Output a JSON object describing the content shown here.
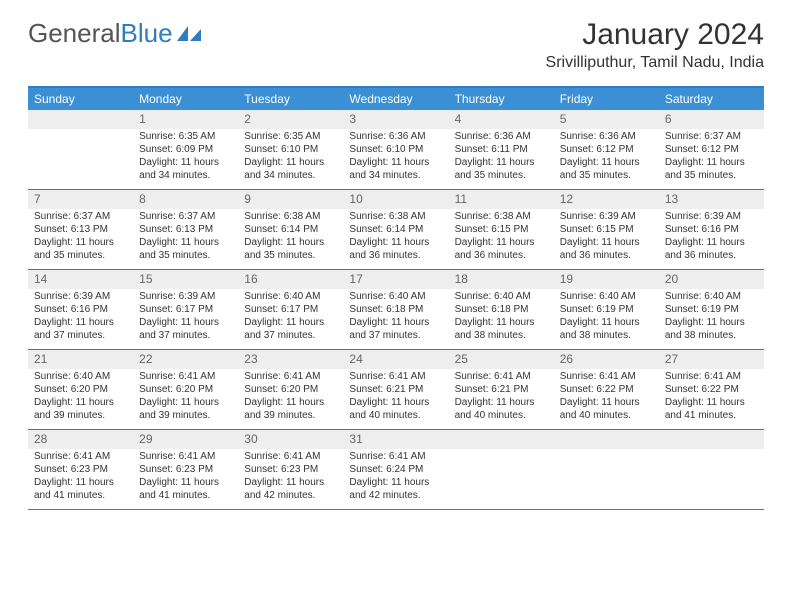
{
  "brand": {
    "part1": "General",
    "part2": "Blue"
  },
  "header": {
    "title": "January 2024",
    "location": "Srivilliputhur, Tamil Nadu, India"
  },
  "colors": {
    "header_blue": "#3b8fd4",
    "border_blue": "#2f7cc0",
    "daynum_bg": "#eeeeee",
    "text": "#333333",
    "text_muted": "#666666",
    "background": "#ffffff"
  },
  "typography": {
    "title_fontsize": 30,
    "location_fontsize": 16,
    "dayheader_fontsize": 12,
    "daynum_fontsize": 12,
    "cell_fontsize": 10
  },
  "day_names": [
    "Sunday",
    "Monday",
    "Tuesday",
    "Wednesday",
    "Thursday",
    "Friday",
    "Saturday"
  ],
  "weeks": [
    [
      {
        "day": ""
      },
      {
        "day": "1",
        "sunrise": "Sunrise: 6:35 AM",
        "sunset": "Sunset: 6:09 PM",
        "dl1": "Daylight: 11 hours",
        "dl2": "and 34 minutes."
      },
      {
        "day": "2",
        "sunrise": "Sunrise: 6:35 AM",
        "sunset": "Sunset: 6:10 PM",
        "dl1": "Daylight: 11 hours",
        "dl2": "and 34 minutes."
      },
      {
        "day": "3",
        "sunrise": "Sunrise: 6:36 AM",
        "sunset": "Sunset: 6:10 PM",
        "dl1": "Daylight: 11 hours",
        "dl2": "and 34 minutes."
      },
      {
        "day": "4",
        "sunrise": "Sunrise: 6:36 AM",
        "sunset": "Sunset: 6:11 PM",
        "dl1": "Daylight: 11 hours",
        "dl2": "and 35 minutes."
      },
      {
        "day": "5",
        "sunrise": "Sunrise: 6:36 AM",
        "sunset": "Sunset: 6:12 PM",
        "dl1": "Daylight: 11 hours",
        "dl2": "and 35 minutes."
      },
      {
        "day": "6",
        "sunrise": "Sunrise: 6:37 AM",
        "sunset": "Sunset: 6:12 PM",
        "dl1": "Daylight: 11 hours",
        "dl2": "and 35 minutes."
      }
    ],
    [
      {
        "day": "7",
        "sunrise": "Sunrise: 6:37 AM",
        "sunset": "Sunset: 6:13 PM",
        "dl1": "Daylight: 11 hours",
        "dl2": "and 35 minutes."
      },
      {
        "day": "8",
        "sunrise": "Sunrise: 6:37 AM",
        "sunset": "Sunset: 6:13 PM",
        "dl1": "Daylight: 11 hours",
        "dl2": "and 35 minutes."
      },
      {
        "day": "9",
        "sunrise": "Sunrise: 6:38 AM",
        "sunset": "Sunset: 6:14 PM",
        "dl1": "Daylight: 11 hours",
        "dl2": "and 35 minutes."
      },
      {
        "day": "10",
        "sunrise": "Sunrise: 6:38 AM",
        "sunset": "Sunset: 6:14 PM",
        "dl1": "Daylight: 11 hours",
        "dl2": "and 36 minutes."
      },
      {
        "day": "11",
        "sunrise": "Sunrise: 6:38 AM",
        "sunset": "Sunset: 6:15 PM",
        "dl1": "Daylight: 11 hours",
        "dl2": "and 36 minutes."
      },
      {
        "day": "12",
        "sunrise": "Sunrise: 6:39 AM",
        "sunset": "Sunset: 6:15 PM",
        "dl1": "Daylight: 11 hours",
        "dl2": "and 36 minutes."
      },
      {
        "day": "13",
        "sunrise": "Sunrise: 6:39 AM",
        "sunset": "Sunset: 6:16 PM",
        "dl1": "Daylight: 11 hours",
        "dl2": "and 36 minutes."
      }
    ],
    [
      {
        "day": "14",
        "sunrise": "Sunrise: 6:39 AM",
        "sunset": "Sunset: 6:16 PM",
        "dl1": "Daylight: 11 hours",
        "dl2": "and 37 minutes."
      },
      {
        "day": "15",
        "sunrise": "Sunrise: 6:39 AM",
        "sunset": "Sunset: 6:17 PM",
        "dl1": "Daylight: 11 hours",
        "dl2": "and 37 minutes."
      },
      {
        "day": "16",
        "sunrise": "Sunrise: 6:40 AM",
        "sunset": "Sunset: 6:17 PM",
        "dl1": "Daylight: 11 hours",
        "dl2": "and 37 minutes."
      },
      {
        "day": "17",
        "sunrise": "Sunrise: 6:40 AM",
        "sunset": "Sunset: 6:18 PM",
        "dl1": "Daylight: 11 hours",
        "dl2": "and 37 minutes."
      },
      {
        "day": "18",
        "sunrise": "Sunrise: 6:40 AM",
        "sunset": "Sunset: 6:18 PM",
        "dl1": "Daylight: 11 hours",
        "dl2": "and 38 minutes."
      },
      {
        "day": "19",
        "sunrise": "Sunrise: 6:40 AM",
        "sunset": "Sunset: 6:19 PM",
        "dl1": "Daylight: 11 hours",
        "dl2": "and 38 minutes."
      },
      {
        "day": "20",
        "sunrise": "Sunrise: 6:40 AM",
        "sunset": "Sunset: 6:19 PM",
        "dl1": "Daylight: 11 hours",
        "dl2": "and 38 minutes."
      }
    ],
    [
      {
        "day": "21",
        "sunrise": "Sunrise: 6:40 AM",
        "sunset": "Sunset: 6:20 PM",
        "dl1": "Daylight: 11 hours",
        "dl2": "and 39 minutes."
      },
      {
        "day": "22",
        "sunrise": "Sunrise: 6:41 AM",
        "sunset": "Sunset: 6:20 PM",
        "dl1": "Daylight: 11 hours",
        "dl2": "and 39 minutes."
      },
      {
        "day": "23",
        "sunrise": "Sunrise: 6:41 AM",
        "sunset": "Sunset: 6:20 PM",
        "dl1": "Daylight: 11 hours",
        "dl2": "and 39 minutes."
      },
      {
        "day": "24",
        "sunrise": "Sunrise: 6:41 AM",
        "sunset": "Sunset: 6:21 PM",
        "dl1": "Daylight: 11 hours",
        "dl2": "and 40 minutes."
      },
      {
        "day": "25",
        "sunrise": "Sunrise: 6:41 AM",
        "sunset": "Sunset: 6:21 PM",
        "dl1": "Daylight: 11 hours",
        "dl2": "and 40 minutes."
      },
      {
        "day": "26",
        "sunrise": "Sunrise: 6:41 AM",
        "sunset": "Sunset: 6:22 PM",
        "dl1": "Daylight: 11 hours",
        "dl2": "and 40 minutes."
      },
      {
        "day": "27",
        "sunrise": "Sunrise: 6:41 AM",
        "sunset": "Sunset: 6:22 PM",
        "dl1": "Daylight: 11 hours",
        "dl2": "and 41 minutes."
      }
    ],
    [
      {
        "day": "28",
        "sunrise": "Sunrise: 6:41 AM",
        "sunset": "Sunset: 6:23 PM",
        "dl1": "Daylight: 11 hours",
        "dl2": "and 41 minutes."
      },
      {
        "day": "29",
        "sunrise": "Sunrise: 6:41 AM",
        "sunset": "Sunset: 6:23 PM",
        "dl1": "Daylight: 11 hours",
        "dl2": "and 41 minutes."
      },
      {
        "day": "30",
        "sunrise": "Sunrise: 6:41 AM",
        "sunset": "Sunset: 6:23 PM",
        "dl1": "Daylight: 11 hours",
        "dl2": "and 42 minutes."
      },
      {
        "day": "31",
        "sunrise": "Sunrise: 6:41 AM",
        "sunset": "Sunset: 6:24 PM",
        "dl1": "Daylight: 11 hours",
        "dl2": "and 42 minutes."
      },
      {
        "day": ""
      },
      {
        "day": ""
      },
      {
        "day": ""
      }
    ]
  ]
}
